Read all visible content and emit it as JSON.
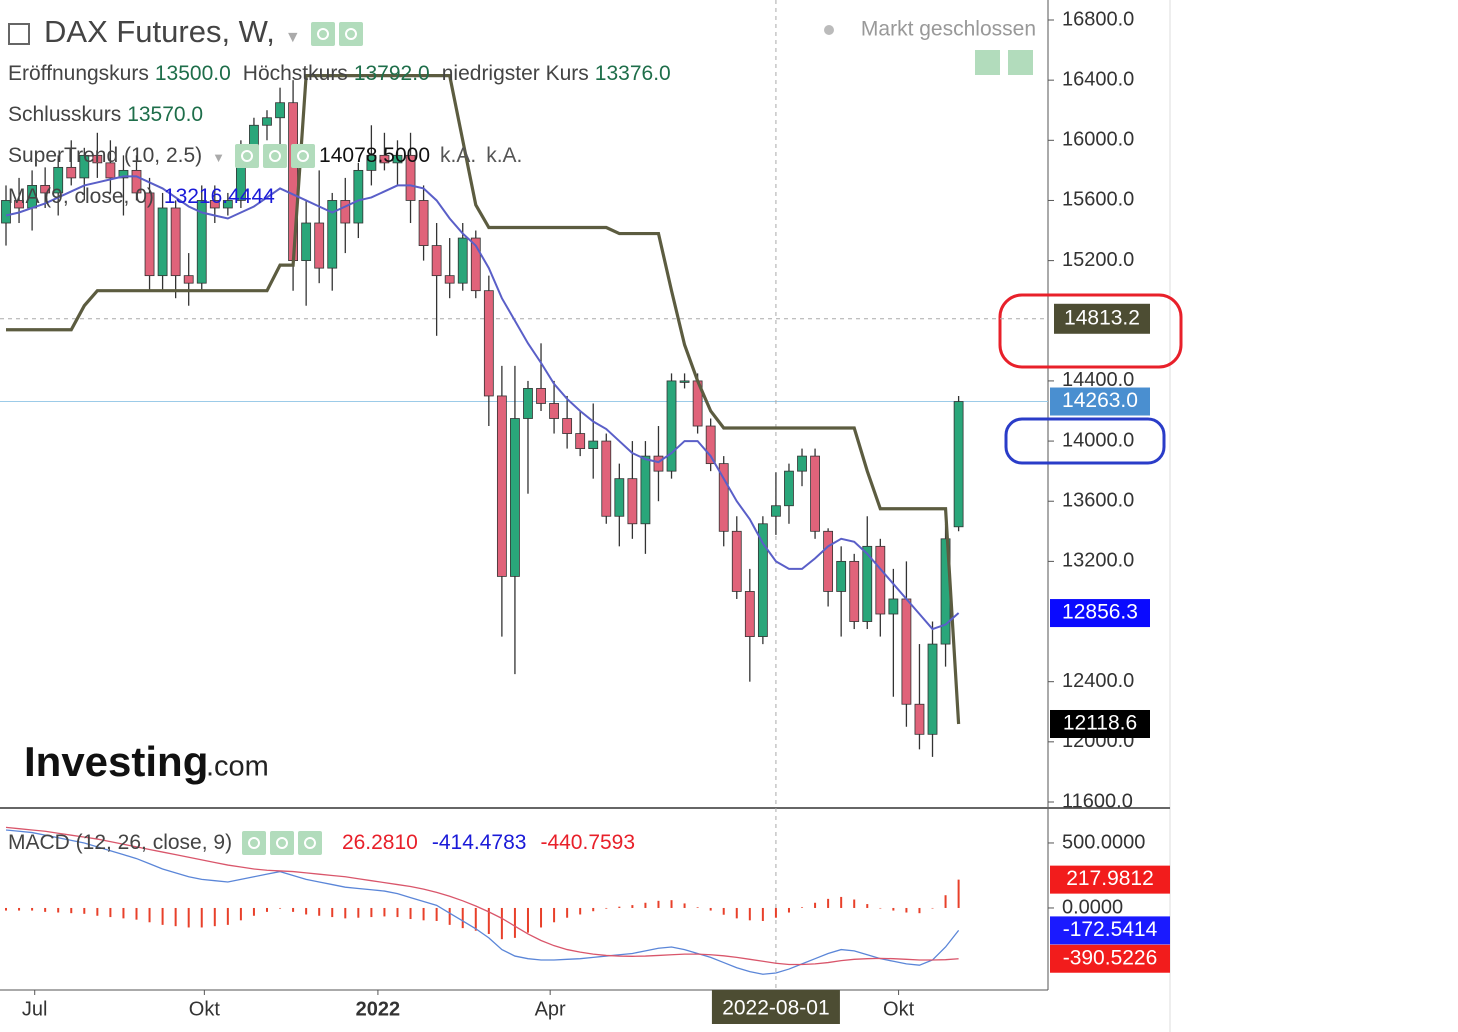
{
  "watermark": {
    "brand": "Investing",
    "suffix": ".com"
  },
  "chart_data": [
    {
      "type": "candlestick",
      "title": "DAX Futures, W,",
      "status": "Markt geschlossen",
      "ohlc_legend": [
        [
          {
            "label": "Eröffnungskurs",
            "value": "13500.0"
          },
          {
            "label": "Höchstkurs",
            "value": "13792.0"
          },
          {
            "label": "niedrigster Kurs",
            "value": "13376.0"
          }
        ],
        [
          {
            "label": "Schlusskurs",
            "value": "13570.0"
          }
        ]
      ],
      "up_color": "#2aa67a",
      "down_color": "#e0637a",
      "ohlc": [
        [
          15450,
          15700,
          15300,
          15600
        ],
        [
          15600,
          15750,
          15450,
          15550
        ],
        [
          15550,
          15800,
          15400,
          15700
        ],
        [
          15700,
          15820,
          15550,
          15650
        ],
        [
          15650,
          15900,
          15500,
          15820
        ],
        [
          15820,
          16000,
          15700,
          15750
        ],
        [
          15750,
          15950,
          15600,
          15900
        ],
        [
          15900,
          16050,
          15750,
          15850
        ],
        [
          15850,
          16000,
          15650,
          15750
        ],
        [
          15750,
          15900,
          15500,
          15800
        ],
        [
          15800,
          15900,
          15600,
          15650
        ],
        [
          15650,
          15750,
          15000,
          15100
        ],
        [
          15100,
          15650,
          15000,
          15550
        ],
        [
          15550,
          15600,
          14950,
          15100
        ],
        [
          15100,
          15250,
          14900,
          15050
        ],
        [
          15050,
          15700,
          15000,
          15600
        ],
        [
          15600,
          15700,
          15450,
          15550
        ],
        [
          15550,
          15650,
          15500,
          15600
        ],
        [
          15600,
          16000,
          15550,
          15950
        ],
        [
          15950,
          16150,
          15900,
          16100
        ],
        [
          16100,
          16200,
          16000,
          16150
        ],
        [
          16150,
          16350,
          15950,
          16250
        ],
        [
          16250,
          16400,
          15000,
          15200
        ],
        [
          15200,
          15600,
          14900,
          15450
        ],
        [
          15450,
          15800,
          15050,
          15150
        ],
        [
          15150,
          15650,
          15000,
          15600
        ],
        [
          15600,
          15750,
          15250,
          15450
        ],
        [
          15450,
          15850,
          15350,
          15800
        ],
        [
          15800,
          16100,
          15700,
          15900
        ],
        [
          15900,
          16050,
          15800,
          15850
        ],
        [
          15850,
          16000,
          15700,
          15900
        ],
        [
          15900,
          16050,
          15450,
          15600
        ],
        [
          15600,
          15700,
          15200,
          15300
        ],
        [
          15300,
          15450,
          14700,
          15100
        ],
        [
          15100,
          15350,
          14950,
          15050
        ],
        [
          15050,
          15450,
          15000,
          15350
        ],
        [
          15350,
          15400,
          14950,
          15000
        ],
        [
          15000,
          15100,
          14100,
          14300
        ],
        [
          14300,
          14500,
          12700,
          13100
        ],
        [
          13100,
          14500,
          12450,
          14150
        ],
        [
          14150,
          14400,
          13650,
          14350
        ],
        [
          14350,
          14650,
          14200,
          14250
        ],
        [
          14250,
          14400,
          14050,
          14150
        ],
        [
          14150,
          14300,
          13950,
          14050
        ],
        [
          14050,
          14200,
          13900,
          13950
        ],
        [
          13950,
          14250,
          13750,
          14000
        ],
        [
          14000,
          14050,
          13450,
          13500
        ],
        [
          13500,
          13850,
          13300,
          13750
        ],
        [
          13750,
          14000,
          13350,
          13450
        ],
        [
          13450,
          14000,
          13250,
          13900
        ],
        [
          13900,
          14100,
          13600,
          13800
        ],
        [
          13800,
          14450,
          13750,
          14400
        ],
        [
          14400,
          14450,
          14350,
          14400
        ],
        [
          14400,
          14450,
          14050,
          14100
        ],
        [
          14100,
          14150,
          13800,
          13850
        ],
        [
          13850,
          13900,
          13300,
          13400
        ],
        [
          13400,
          13500,
          12950,
          13000
        ],
        [
          13000,
          13150,
          12400,
          12700
        ],
        [
          12700,
          13500,
          12650,
          13450
        ],
        [
          13500,
          13792,
          13376,
          13570
        ],
        [
          13570,
          13850,
          13450,
          13800
        ],
        [
          13800,
          13950,
          13700,
          13900
        ],
        [
          13900,
          13950,
          13350,
          13400
        ],
        [
          13400,
          13420,
          12900,
          13000
        ],
        [
          13000,
          13300,
          12700,
          13200
        ],
        [
          13200,
          13250,
          12750,
          12800
        ],
        [
          12800,
          13500,
          12750,
          13300
        ],
        [
          13300,
          13350,
          12700,
          12850
        ],
        [
          12850,
          13150,
          12300,
          12950
        ],
        [
          12950,
          13200,
          12100,
          12250
        ],
        [
          12250,
          12650,
          11950,
          12050
        ],
        [
          12050,
          12800,
          11900,
          12650
        ],
        [
          12650,
          13450,
          12500,
          13350
        ],
        [
          13430,
          14300,
          13400,
          14263
        ]
      ],
      "series": [
        {
          "name": "SuperTrend (10, 2.5)",
          "color": "#5c5c40",
          "legend_values": [
            "14078.5000",
            "k.A.",
            "k.A."
          ],
          "values": [
            14740,
            14740,
            14740,
            14740,
            14740,
            14740,
            14900,
            15000,
            15000,
            15000,
            15000,
            15000,
            15000,
            15000,
            15000,
            15000,
            15000,
            15000,
            15000,
            15000,
            15000,
            15170,
            15170,
            16430,
            16430,
            16430,
            16430,
            16430,
            16430,
            16430,
            16430,
            16430,
            16430,
            16430,
            16430,
            16000,
            15570,
            15420,
            15420,
            15420,
            15420,
            15420,
            15420,
            15420,
            15420,
            15420,
            15420,
            15380,
            15380,
            15380,
            15380,
            15000,
            14640,
            14400,
            14200,
            14087,
            14087,
            14087,
            14087,
            14087,
            14087,
            14087,
            14087,
            14087,
            14087,
            14087,
            13800,
            13550,
            13550,
            13550,
            13550,
            13550,
            13550,
            12118.6
          ]
        },
        {
          "name": "MA (9, close, 0)",
          "color": "#5a5fc8",
          "legend_values": [
            "13216.4444"
          ],
          "values": [
            15500,
            15520,
            15550,
            15580,
            15620,
            15660,
            15700,
            15720,
            15740,
            15760,
            15760,
            15720,
            15680,
            15620,
            15560,
            15520,
            15500,
            15480,
            15520,
            15560,
            15620,
            15680,
            15640,
            15600,
            15560,
            15520,
            15560,
            15600,
            15620,
            15660,
            15700,
            15700,
            15680,
            15600,
            15480,
            15380,
            15300,
            15150,
            14950,
            14800,
            14650,
            14520,
            14380,
            14280,
            14200,
            14130,
            14080,
            14000,
            13920,
            13880,
            13860,
            13920,
            14000,
            14000,
            13900,
            13750,
            13600,
            13480,
            13320,
            13200,
            13150,
            13150,
            13220,
            13300,
            13350,
            13330,
            13250,
            13150,
            13050,
            12950,
            12850,
            12750,
            12780,
            12856.3
          ]
        }
      ],
      "price_tags": [
        {
          "value": 14263,
          "label": "14263.0",
          "color": "#4a8fd0",
          "line": true
        },
        12856.3,
        12118.6
      ],
      "price_tag_colors": [
        "#4a8fd0",
        "#0a0aff",
        "#000000"
      ],
      "crosshair": {
        "x": 59,
        "x_label": "2022-08-01",
        "y": 14813.2
      },
      "xlim": [
        -0.46,
        79.85
      ],
      "xticks": [
        {
          "value": 2.2,
          "label": "Jul"
        },
        {
          "value": 15.2,
          "label": "Okt"
        },
        {
          "value": 28.5,
          "label": "2022",
          "bold": true
        },
        {
          "value": 41.7,
          "label": "Apr"
        },
        {
          "value": 68.4,
          "label": "Okt"
        }
      ],
      "ylim": [
        11560,
        16933
      ],
      "yticks": [
        {
          "value": 16800,
          "label": "16800.0"
        },
        {
          "value": 16400,
          "label": "16400.0"
        },
        {
          "value": 16000,
          "label": "16000.0"
        },
        {
          "value": 15600,
          "label": "15600.0"
        },
        {
          "value": 15200,
          "label": "15200.0"
        },
        {
          "value": 14400,
          "label": "14400.0"
        },
        {
          "value": 14000,
          "label": "14000.0"
        },
        {
          "value": 13600,
          "label": "13600.0"
        },
        {
          "value": 13200,
          "label": "13200.0"
        },
        {
          "value": 12400,
          "label": "12400.0"
        },
        {
          "value": 12000,
          "label": "12000.0"
        },
        {
          "value": 11600,
          "label": "11600.0"
        }
      ]
    },
    {
      "type": "macd",
      "title": "MACD (12, 26, close, 9)",
      "legend_values": [
        {
          "text": "26.2810",
          "color": "#e8202a"
        },
        {
          "text": "-414.4783",
          "color": "#1a1ad8"
        },
        {
          "text": "-440.7593",
          "color": "#e8202a"
        }
      ],
      "series": [
        {
          "style": "histogram",
          "color": "#e8402a",
          "tag_color": "#f21c1c",
          "values": [
            -20,
            -20,
            -20,
            -30,
            -35,
            -40,
            -45,
            -60,
            -70,
            -80,
            -90,
            -110,
            -130,
            -140,
            -150,
            -150,
            -140,
            -130,
            -95,
            -60,
            -30,
            -5,
            -30,
            -50,
            -60,
            -70,
            -80,
            -75,
            -70,
            -65,
            -70,
            -85,
            -95,
            -100,
            -130,
            -155,
            -175,
            -200,
            -240,
            -230,
            -190,
            -150,
            -110,
            -75,
            -50,
            -25,
            -5,
            10,
            22,
            40,
            55,
            60,
            35,
            5,
            -20,
            -52,
            -80,
            -95,
            -100,
            -75,
            -35,
            5,
            40,
            70,
            85,
            65,
            30,
            -2,
            -20,
            -35,
            -40,
            0,
            98,
            217.9812
          ]
        },
        {
          "style": "line",
          "color": "#5b86d8",
          "tag_color": "#1a1aff",
          "values": [
            600,
            590,
            580,
            560,
            540,
            520,
            500,
            470,
            440,
            410,
            380,
            340,
            300,
            270,
            240,
            220,
            210,
            200,
            220,
            240,
            260,
            280,
            250,
            220,
            200,
            180,
            160,
            150,
            140,
            130,
            110,
            80,
            50,
            20,
            -40,
            -100,
            -160,
            -230,
            -320,
            -370,
            -390,
            -400,
            -400,
            -395,
            -390,
            -380,
            -370,
            -360,
            -350,
            -330,
            -310,
            -300,
            -320,
            -350,
            -380,
            -420,
            -460,
            -490,
            -510,
            -500,
            -470,
            -430,
            -390,
            -350,
            -320,
            -330,
            -360,
            -390,
            -410,
            -430,
            -440,
            -400,
            -300,
            -172.5414
          ]
        },
        {
          "style": "line",
          "color": "#d9566b",
          "tag_color": "#f21c1c",
          "values": [
            620,
            610,
            600,
            590,
            575,
            560,
            545,
            530,
            510,
            490,
            470,
            450,
            430,
            410,
            390,
            370,
            350,
            330,
            315,
            300,
            290,
            285,
            280,
            270,
            260,
            250,
            240,
            225,
            210,
            195,
            180,
            165,
            145,
            120,
            90,
            55,
            15,
            -30,
            -80,
            -140,
            -200,
            -250,
            -290,
            -320,
            -340,
            -355,
            -365,
            -370,
            -372,
            -370,
            -365,
            -360,
            -355,
            -355,
            -360,
            -368,
            -380,
            -395,
            -410,
            -425,
            -435,
            -435,
            -430,
            -420,
            -405,
            -395,
            -390,
            -388,
            -390,
            -395,
            -400,
            -400,
            -398,
            -390.5226
          ]
        }
      ],
      "ylim": [
        -631,
        769
      ],
      "yticks": [
        {
          "value": 500,
          "label": "500.0000"
        },
        {
          "value": 0,
          "label": "0.0000"
        }
      ]
    }
  ]
}
